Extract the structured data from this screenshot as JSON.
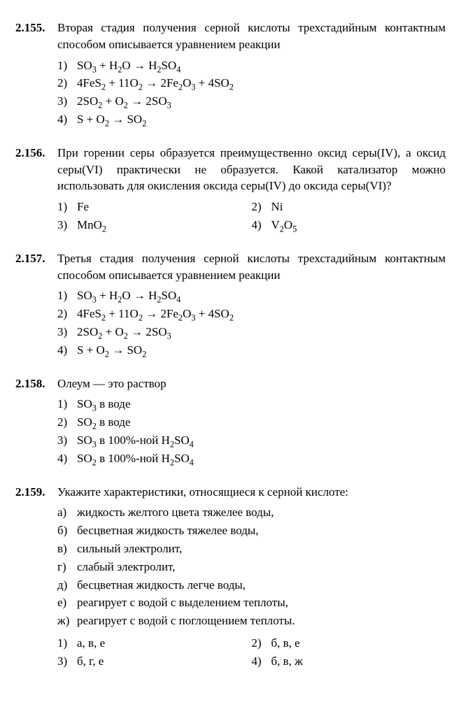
{
  "problems": [
    {
      "number": "2.155.",
      "prompt": "Вторая стадия получения серной кислоты трехстадийным контактным способом описывается уравнением реакции",
      "layout": "single",
      "options": [
        {
          "marker": "1)",
          "html": "SO<sub>3</sub> + H<sub>2</sub>O → H<sub>2</sub>SO<sub>4</sub>"
        },
        {
          "marker": "2)",
          "html": "4FeS<sub>2</sub> + 11O<sub>2</sub> → 2Fe<sub>2</sub>O<sub>3</sub> + 4SO<sub>2</sub>"
        },
        {
          "marker": "3)",
          "html": "2SO<sub>2</sub> + O<sub>2</sub> → 2SO<sub>3</sub>"
        },
        {
          "marker": "4)",
          "html": "S + O<sub>2</sub> → SO<sub>2</sub>"
        }
      ]
    },
    {
      "number": "2.156.",
      "prompt": "При горении серы образуется преимущественно оксид серы(IV), а оксид серы(VI) практически не образуется. Какой катализатор можно использовать для окисления оксида серы(IV) до оксида серы(VI)?",
      "layout": "two-col",
      "options": [
        {
          "marker": "1)",
          "html": "Fe"
        },
        {
          "marker": "2)",
          "html": "Ni"
        },
        {
          "marker": "3)",
          "html": "MnO<sub>2</sub>"
        },
        {
          "marker": "4)",
          "html": "V<sub>2</sub>O<sub>5</sub>"
        }
      ]
    },
    {
      "number": "2.157.",
      "prompt": "Третья стадия получения серной кислоты трехстадийным контактным способом описывается уравнением реакции",
      "layout": "single",
      "options": [
        {
          "marker": "1)",
          "html": "SO<sub>3</sub> + H<sub>2</sub>O → H<sub>2</sub>SO<sub>4</sub>"
        },
        {
          "marker": "2)",
          "html": "4FeS<sub>2</sub> + 11O<sub>2</sub> → 2Fe<sub>2</sub>O<sub>3</sub> + 4SO<sub>2</sub>"
        },
        {
          "marker": "3)",
          "html": "2SO<sub>2</sub> + O<sub>2</sub> → 2SO<sub>3</sub>"
        },
        {
          "marker": "4)",
          "html": "S + O<sub>2</sub> → SO<sub>2</sub>"
        }
      ]
    },
    {
      "number": "2.158.",
      "prompt": "Олеум — это раствор",
      "layout": "single",
      "options": [
        {
          "marker": "1)",
          "html": "SO<sub>3</sub> в воде"
        },
        {
          "marker": "2)",
          "html": "SO<sub>2</sub> в воде"
        },
        {
          "marker": "3)",
          "html": "SO<sub>3</sub> в 100%-ной H<sub>2</sub>SO<sub>4</sub>"
        },
        {
          "marker": "4)",
          "html": "SO<sub>2</sub> в 100%-ной H<sub>2</sub>SO<sub>4</sub>"
        }
      ]
    },
    {
      "number": "2.159.",
      "prompt": "Укажите характеристики, относящиеся к серной кислоте:",
      "layout": "single",
      "sublist": [
        {
          "marker": "а)",
          "text": "жидкость желтого цвета тяжелее воды,"
        },
        {
          "marker": "б)",
          "text": "бесцветная жидкость тяжелее воды,"
        },
        {
          "marker": "в)",
          "text": "сильный электролит,"
        },
        {
          "marker": "г)",
          "text": "слабый электролит,"
        },
        {
          "marker": "д)",
          "text": "бесцветная жидкость легче воды,"
        },
        {
          "marker": "е)",
          "text": "реагирует с водой с выделением теплоты,"
        },
        {
          "marker": "ж)",
          "text": "реагирует с водой с поглощением теплоты."
        }
      ],
      "answers_layout": "two-col",
      "answers": [
        {
          "marker": "1)",
          "text": "а, в, е"
        },
        {
          "marker": "2)",
          "text": "б, в, е"
        },
        {
          "marker": "3)",
          "text": "б, г, е"
        },
        {
          "marker": "4)",
          "text": "б, в, ж"
        }
      ]
    }
  ]
}
